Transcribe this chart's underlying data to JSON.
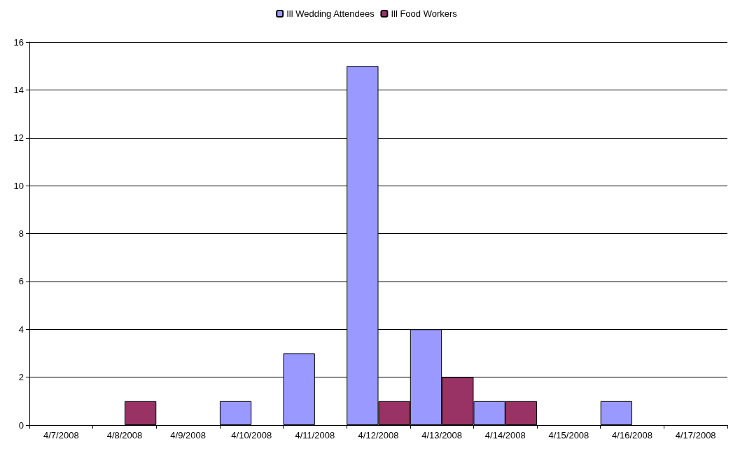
{
  "chart_data": {
    "type": "bar",
    "categories": [
      "4/7/2008",
      "4/8/2008",
      "4/9/2008",
      "4/10/2008",
      "4/11/2008",
      "4/12/2008",
      "4/13/2008",
      "4/14/2008",
      "4/15/2008",
      "4/16/2008",
      "4/17/2008"
    ],
    "series": [
      {
        "name": "Ill Wedding Attendees",
        "color": "#9999ff",
        "values": [
          0,
          0,
          0,
          1,
          3,
          15,
          4,
          1,
          0,
          1,
          0
        ]
      },
      {
        "name": "Ill Food Workers",
        "color": "#993366",
        "values": [
          0,
          1,
          0,
          0,
          0,
          1,
          2,
          1,
          0,
          0,
          0
        ]
      }
    ],
    "ylim": [
      0,
      16
    ],
    "yticks": [
      0,
      2,
      4,
      6,
      8,
      10,
      12,
      14,
      16
    ],
    "grid": "y",
    "legend": "top"
  }
}
